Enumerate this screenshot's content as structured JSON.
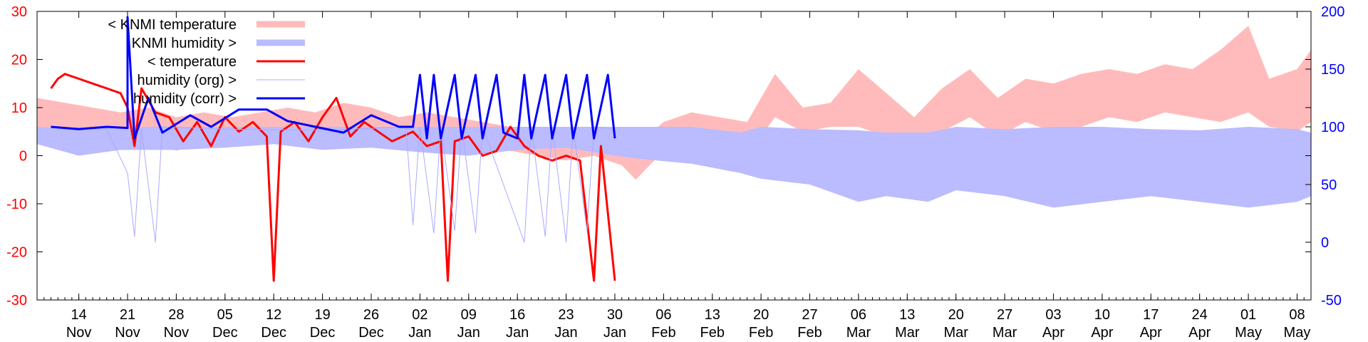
{
  "chart_data": {
    "type": "line",
    "title": "",
    "xlabel": "",
    "ylabel": "",
    "x_range": [
      "2013-11-08",
      "2014-05-10"
    ],
    "y_left": {
      "ticks": [
        30,
        20,
        10,
        0,
        -10,
        -20,
        -30
      ],
      "ylim": [
        -30,
        30
      ],
      "color": "#ff0000"
    },
    "y_right": {
      "ticks": [
        200,
        150,
        100,
        50,
        0,
        -50
      ],
      "ylim": [
        -50,
        200
      ],
      "color": "#0000ff"
    },
    "x_ticks": [
      {
        "day": "14",
        "month": "Nov",
        "date": "2013-11-14"
      },
      {
        "day": "21",
        "month": "Nov",
        "date": "2013-11-21"
      },
      {
        "day": "28",
        "month": "Nov",
        "date": "2013-11-28"
      },
      {
        "day": "05",
        "month": "Dec",
        "date": "2013-12-05"
      },
      {
        "day": "12",
        "month": "Dec",
        "date": "2013-12-12"
      },
      {
        "day": "19",
        "month": "Dec",
        "date": "2013-12-19"
      },
      {
        "day": "26",
        "month": "Dec",
        "date": "2013-12-26"
      },
      {
        "day": "02",
        "month": "Jan",
        "date": "2014-01-02"
      },
      {
        "day": "09",
        "month": "Jan",
        "date": "2014-01-09"
      },
      {
        "day": "16",
        "month": "Jan",
        "date": "2014-01-16"
      },
      {
        "day": "23",
        "month": "Jan",
        "date": "2014-01-23"
      },
      {
        "day": "30",
        "month": "Jan",
        "date": "2014-01-30"
      },
      {
        "day": "06",
        "month": "Feb",
        "date": "2014-02-06"
      },
      {
        "day": "13",
        "month": "Feb",
        "date": "2014-02-13"
      },
      {
        "day": "20",
        "month": "Feb",
        "date": "2014-02-20"
      },
      {
        "day": "27",
        "month": "Feb",
        "date": "2014-02-27"
      },
      {
        "day": "06",
        "month": "Mar",
        "date": "2014-03-06"
      },
      {
        "day": "13",
        "month": "Mar",
        "date": "2014-03-13"
      },
      {
        "day": "20",
        "month": "Mar",
        "date": "2014-03-20"
      },
      {
        "day": "27",
        "month": "Mar",
        "date": "2014-03-27"
      },
      {
        "day": "03",
        "month": "Apr",
        "date": "2014-04-03"
      },
      {
        "day": "10",
        "month": "Apr",
        "date": "2014-04-10"
      },
      {
        "day": "17",
        "month": "Apr",
        "date": "2014-04-17"
      },
      {
        "day": "24",
        "month": "Apr",
        "date": "2014-04-24"
      },
      {
        "day": "01",
        "month": "May",
        "date": "2014-05-01"
      },
      {
        "day": "08",
        "month": "May",
        "date": "2014-05-08"
      }
    ],
    "legend_placement": "top-left",
    "series": [
      {
        "name": "< KNMI temperature",
        "axis": "left",
        "style": "band",
        "color": "#ffbbbb",
        "points": [
          [
            "2013-11-08",
            4,
            12
          ],
          [
            "2013-11-12",
            5,
            11
          ],
          [
            "2013-11-16",
            3,
            10
          ],
          [
            "2013-11-20",
            2,
            9
          ],
          [
            "2013-11-24",
            4,
            10
          ],
          [
            "2013-11-28",
            1,
            8
          ],
          [
            "2013-12-02",
            3,
            9
          ],
          [
            "2013-12-06",
            2,
            8
          ],
          [
            "2013-12-10",
            4,
            9
          ],
          [
            "2013-12-14",
            5,
            10
          ],
          [
            "2013-12-18",
            4,
            9
          ],
          [
            "2013-12-22",
            6,
            11
          ],
          [
            "2013-12-26",
            5,
            10
          ],
          [
            "2013-12-30",
            3,
            8
          ],
          [
            "2014-01-03",
            4,
            9
          ],
          [
            "2014-01-07",
            3,
            8
          ],
          [
            "2014-01-11",
            2,
            7
          ],
          [
            "2014-01-15",
            1,
            6
          ],
          [
            "2014-01-19",
            0,
            5
          ],
          [
            "2014-01-23",
            -1,
            4
          ],
          [
            "2014-01-27",
            0,
            4
          ],
          [
            "2014-01-31",
            -2,
            3
          ],
          [
            "2014-02-02",
            -5,
            2
          ],
          [
            "2014-02-06",
            1,
            7
          ],
          [
            "2014-02-10",
            3,
            9
          ],
          [
            "2014-02-14",
            2,
            8
          ],
          [
            "2014-02-18",
            0,
            7
          ],
          [
            "2014-02-20",
            4,
            12
          ],
          [
            "2014-02-22",
            8,
            17
          ],
          [
            "2014-02-26",
            5,
            10
          ],
          [
            "2014-03-02",
            6,
            11
          ],
          [
            "2014-03-06",
            6,
            18
          ],
          [
            "2014-03-10",
            4,
            13
          ],
          [
            "2014-03-14",
            3,
            8
          ],
          [
            "2014-03-18",
            5,
            14
          ],
          [
            "2014-03-22",
            8,
            18
          ],
          [
            "2014-03-26",
            4,
            12
          ],
          [
            "2014-03-30",
            7,
            16
          ],
          [
            "2014-04-03",
            5,
            15
          ],
          [
            "2014-04-07",
            6,
            17
          ],
          [
            "2014-04-11",
            8,
            18
          ],
          [
            "2014-04-15",
            7,
            17
          ],
          [
            "2014-04-19",
            9,
            19
          ],
          [
            "2014-04-23",
            8,
            18
          ],
          [
            "2014-04-27",
            7,
            22
          ],
          [
            "2014-05-01",
            9,
            27
          ],
          [
            "2014-05-04",
            6,
            16
          ],
          [
            "2014-05-08",
            5,
            18
          ],
          [
            "2014-05-10",
            7,
            22
          ]
        ]
      },
      {
        "name": "KNMI humidity >",
        "axis": "right",
        "style": "band",
        "color": "#bbbbff",
        "points": [
          [
            "2013-11-08",
            85,
            100
          ],
          [
            "2013-11-14",
            75,
            98
          ],
          [
            "2013-11-20",
            80,
            100
          ],
          [
            "2013-11-28",
            80,
            100
          ],
          [
            "2013-12-05",
            82,
            100
          ],
          [
            "2013-12-12",
            85,
            100
          ],
          [
            "2013-12-19",
            80,
            100
          ],
          [
            "2013-12-26",
            82,
            100
          ],
          [
            "2014-01-02",
            78,
            100
          ],
          [
            "2014-01-09",
            75,
            100
          ],
          [
            "2014-01-16",
            80,
            100
          ],
          [
            "2014-01-23",
            82,
            100
          ],
          [
            "2014-01-30",
            75,
            100
          ],
          [
            "2014-02-03",
            72,
            100
          ],
          [
            "2014-02-10",
            68,
            100
          ],
          [
            "2014-02-17",
            60,
            95
          ],
          [
            "2014-02-20",
            55,
            100
          ],
          [
            "2014-02-27",
            50,
            98
          ],
          [
            "2014-03-06",
            35,
            97
          ],
          [
            "2014-03-10",
            40,
            95
          ],
          [
            "2014-03-16",
            35,
            95
          ],
          [
            "2014-03-20",
            45,
            100
          ],
          [
            "2014-03-27",
            40,
            98
          ],
          [
            "2014-04-03",
            30,
            100
          ],
          [
            "2014-04-10",
            35,
            100
          ],
          [
            "2014-04-17",
            40,
            98
          ],
          [
            "2014-04-24",
            35,
            97
          ],
          [
            "2014-05-01",
            30,
            100
          ],
          [
            "2014-05-08",
            35,
            98
          ],
          [
            "2014-05-10",
            40,
            95
          ]
        ]
      },
      {
        "name": "< temperature",
        "axis": "left",
        "style": "line",
        "color": "#ff0000",
        "points": [
          [
            "2013-11-10",
            14
          ],
          [
            "2013-11-11",
            16
          ],
          [
            "2013-11-12",
            17
          ],
          [
            "2013-11-14",
            16
          ],
          [
            "2013-11-16",
            15
          ],
          [
            "2013-11-18",
            14
          ],
          [
            "2013-11-20",
            13
          ],
          [
            "2013-11-21",
            10
          ],
          [
            "2013-11-22",
            2
          ],
          [
            "2013-11-23",
            14
          ],
          [
            "2013-11-25",
            9
          ],
          [
            "2013-11-27",
            8
          ],
          [
            "2013-11-29",
            3
          ],
          [
            "2013-12-01",
            7
          ],
          [
            "2013-12-03",
            2
          ],
          [
            "2013-12-05",
            8
          ],
          [
            "2013-12-07",
            5
          ],
          [
            "2013-12-09",
            7
          ],
          [
            "2013-12-11",
            4
          ],
          [
            "2013-12-12",
            -26
          ],
          [
            "2013-12-13",
            5
          ],
          [
            "2013-12-15",
            7
          ],
          [
            "2013-12-17",
            3
          ],
          [
            "2013-12-19",
            8
          ],
          [
            "2013-12-21",
            12
          ],
          [
            "2013-12-23",
            4
          ],
          [
            "2013-12-25",
            7
          ],
          [
            "2013-12-27",
            5
          ],
          [
            "2013-12-29",
            3
          ],
          [
            "2014-01-01",
            5
          ],
          [
            "2014-01-03",
            2
          ],
          [
            "2014-01-05",
            3
          ],
          [
            "2014-01-06",
            -26
          ],
          [
            "2014-01-07",
            3
          ],
          [
            "2014-01-09",
            4
          ],
          [
            "2014-01-11",
            0
          ],
          [
            "2014-01-13",
            1
          ],
          [
            "2014-01-15",
            6
          ],
          [
            "2014-01-17",
            2
          ],
          [
            "2014-01-19",
            0
          ],
          [
            "2014-01-21",
            -1
          ],
          [
            "2014-01-23",
            0
          ],
          [
            "2014-01-25",
            -1
          ],
          [
            "2014-01-27",
            -26
          ],
          [
            "2014-01-28",
            2
          ],
          [
            "2014-01-30",
            -26
          ]
        ]
      },
      {
        "name": "humidity (org) >",
        "axis": "right",
        "style": "thin-line",
        "color": "#aaaaff",
        "points": [
          [
            "2013-11-10",
            100
          ],
          [
            "2013-11-18",
            98
          ],
          [
            "2013-11-21",
            60
          ],
          [
            "2013-11-22",
            5
          ],
          [
            "2013-11-23",
            98
          ],
          [
            "2013-11-25",
            0
          ],
          [
            "2013-11-26",
            100
          ],
          [
            "2013-12-05",
            98
          ],
          [
            "2013-12-19",
            97
          ],
          [
            "2013-12-31",
            100
          ],
          [
            "2014-01-01",
            15
          ],
          [
            "2014-01-02",
            100
          ],
          [
            "2014-01-04",
            8
          ],
          [
            "2014-01-05",
            100
          ],
          [
            "2014-01-07",
            10
          ],
          [
            "2014-01-08",
            100
          ],
          [
            "2014-01-10",
            8
          ],
          [
            "2014-01-11",
            100
          ],
          [
            "2014-01-17",
            0
          ],
          [
            "2014-01-18",
            100
          ],
          [
            "2014-01-20",
            5
          ],
          [
            "2014-01-21",
            100
          ],
          [
            "2014-01-23",
            0
          ],
          [
            "2014-01-24",
            100
          ],
          [
            "2014-01-26",
            10
          ],
          [
            "2014-01-27",
            100
          ],
          [
            "2014-01-30",
            98
          ]
        ]
      },
      {
        "name": "humidity (corr) >",
        "axis": "right",
        "style": "line",
        "color": "#0000ff",
        "points": [
          [
            "2013-11-10",
            100
          ],
          [
            "2013-11-14",
            98
          ],
          [
            "2013-11-18",
            100
          ],
          [
            "2013-11-21",
            99
          ],
          [
            "2013-11-21",
            195
          ],
          [
            "2013-11-22",
            90
          ],
          [
            "2013-11-24",
            125
          ],
          [
            "2013-11-26",
            95
          ],
          [
            "2013-11-30",
            110
          ],
          [
            "2013-12-03",
            100
          ],
          [
            "2013-12-07",
            115
          ],
          [
            "2013-12-11",
            115
          ],
          [
            "2013-12-14",
            105
          ],
          [
            "2013-12-18",
            100
          ],
          [
            "2013-12-22",
            95
          ],
          [
            "2013-12-26",
            110
          ],
          [
            "2013-12-30",
            100
          ],
          [
            "2014-01-01",
            100
          ],
          [
            "2014-01-02",
            145
          ],
          [
            "2014-01-03",
            90
          ],
          [
            "2014-01-04",
            145
          ],
          [
            "2014-01-05",
            90
          ],
          [
            "2014-01-07",
            145
          ],
          [
            "2014-01-08",
            90
          ],
          [
            "2014-01-10",
            145
          ],
          [
            "2014-01-11",
            90
          ],
          [
            "2014-01-13",
            145
          ],
          [
            "2014-01-14",
            95
          ],
          [
            "2014-01-16",
            90
          ],
          [
            "2014-01-17",
            145
          ],
          [
            "2014-01-18",
            90
          ],
          [
            "2014-01-20",
            145
          ],
          [
            "2014-01-21",
            90
          ],
          [
            "2014-01-23",
            145
          ],
          [
            "2014-01-24",
            90
          ],
          [
            "2014-01-26",
            145
          ],
          [
            "2014-01-27",
            90
          ],
          [
            "2014-01-29",
            145
          ],
          [
            "2014-01-30",
            90
          ]
        ]
      }
    ]
  }
}
